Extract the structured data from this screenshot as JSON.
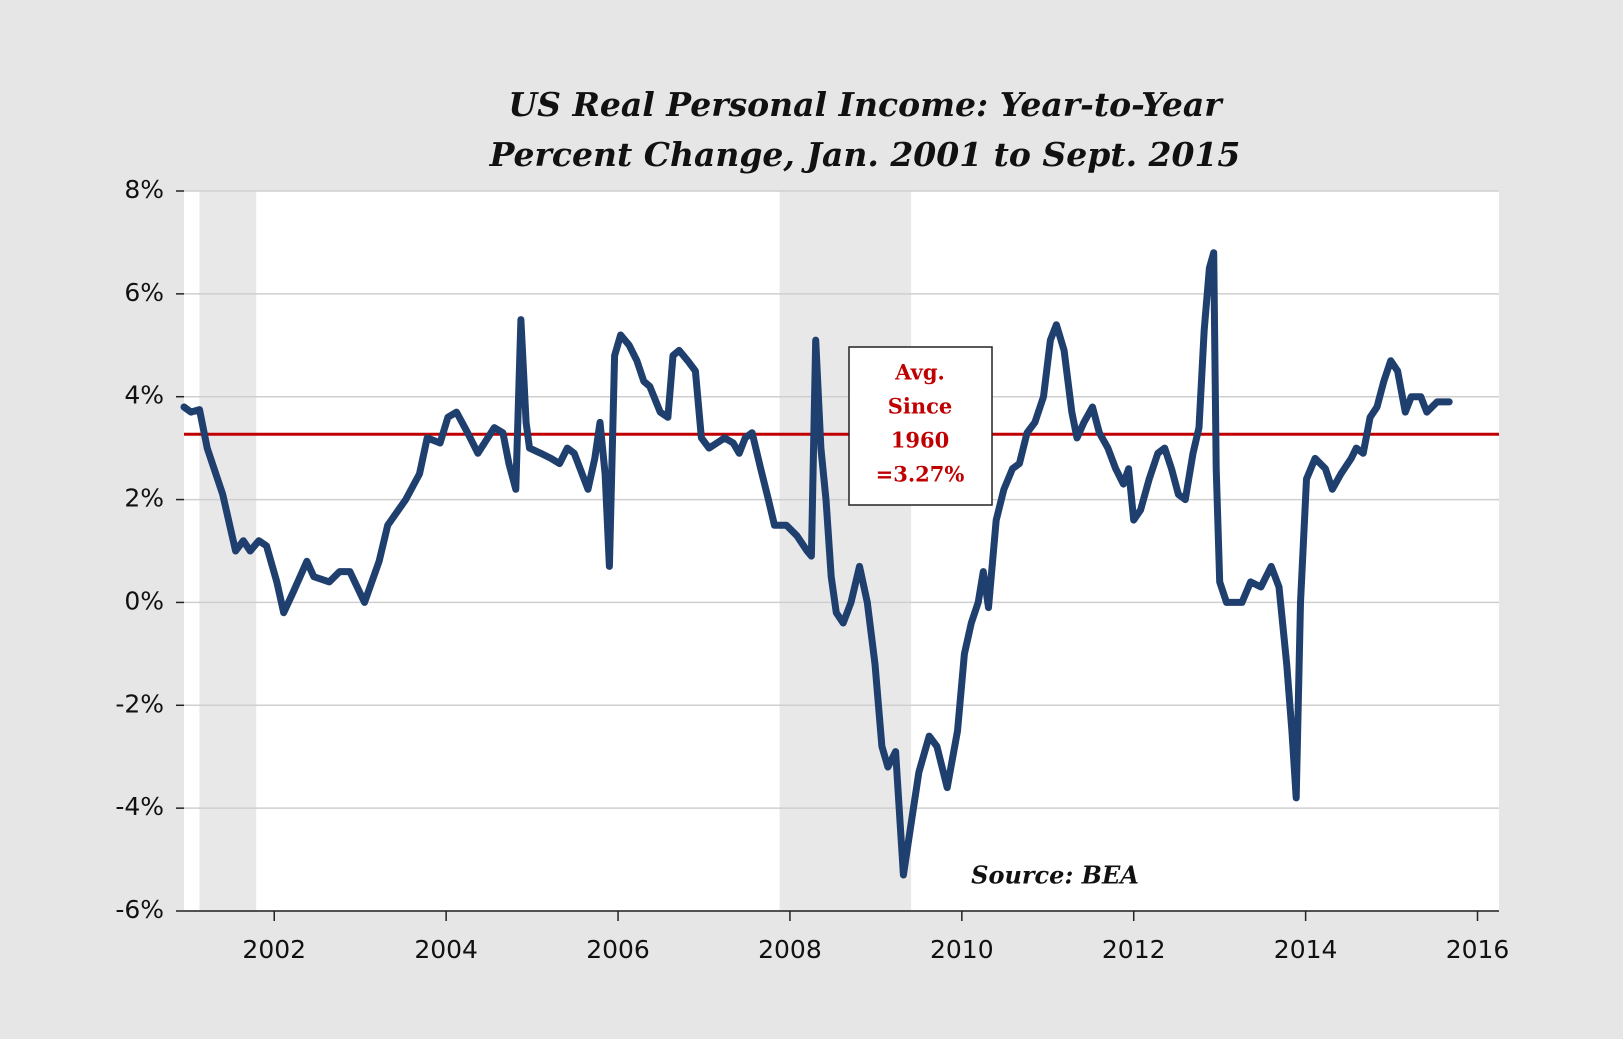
{
  "chart_data": {
    "type": "line",
    "title_lines": [
      "US Real Personal Income: Year-to-Year",
      "Percent Change, Jan. 2001 to Sept. 2015"
    ],
    "source": "Source: BEA",
    "annotation_lines": [
      "Avg.",
      "Since",
      "1960",
      "=3.27%"
    ],
    "reference_line": {
      "value": 3.27,
      "color": "#c00000"
    },
    "shaded_periods": [
      [
        2001.13,
        2001.79
      ],
      [
        2007.88,
        2009.41
      ]
    ],
    "shade_color": "#e8e8e8",
    "xlim": [
      2000.95,
      2016.25
    ],
    "xticks": [
      2002,
      2004,
      2006,
      2008,
      2010,
      2012,
      2014,
      2016
    ],
    "ylim": [
      -6,
      8
    ],
    "yticks": [
      {
        "value": -6,
        "label": "-6%"
      },
      {
        "value": -4,
        "label": "-4%"
      },
      {
        "value": -2,
        "label": "-2%"
      },
      {
        "value": 0,
        "label": "0%"
      },
      {
        "value": 2,
        "label": "2%"
      },
      {
        "value": 4,
        "label": "4%"
      },
      {
        "value": 6,
        "label": "6%"
      },
      {
        "value": 8,
        "label": "8%"
      }
    ],
    "grid": true,
    "x": [
      2000.95,
      2001.03,
      2001.13,
      2001.22,
      2001.4,
      2001.55,
      2001.64,
      2001.72,
      2001.82,
      2001.91,
      2002.03,
      2002.11,
      2002.22,
      2002.38,
      2002.46,
      2002.64,
      2002.76,
      2002.88,
      2003.05,
      2003.22,
      2003.32,
      2003.53,
      2003.69,
      2003.78,
      2003.93,
      2004.02,
      2004.12,
      2004.25,
      2004.37,
      2004.56,
      2004.66,
      2004.73,
      2004.81,
      2004.87,
      2004.93,
      2004.97,
      2005.1,
      2005.22,
      2005.32,
      2005.41,
      2005.49,
      2005.65,
      2005.73,
      2005.79,
      2005.85,
      2005.9,
      2005.96,
      2006.03,
      2006.13,
      2006.22,
      2006.3,
      2006.37,
      2006.49,
      2006.58,
      2006.64,
      2006.71,
      2006.81,
      2006.9,
      2006.97,
      2007.06,
      2007.15,
      2007.24,
      2007.34,
      2007.41,
      2007.48,
      2007.56,
      2007.66,
      2007.75,
      2007.82,
      2007.96,
      2008.08,
      2008.2,
      2008.25,
      2008.3,
      2008.36,
      2008.42,
      2008.48,
      2008.54,
      2008.62,
      2008.71,
      2008.81,
      2008.9,
      2008.99,
      2009.07,
      2009.14,
      2009.23,
      2009.32,
      2009.41,
      2009.5,
      2009.62,
      2009.71,
      2009.83,
      2009.95,
      2010.03,
      2010.11,
      2010.19,
      2010.25,
      2010.31,
      2010.4,
      2010.49,
      2010.59,
      2010.67,
      2010.76,
      2010.85,
      2010.95,
      2011.03,
      2011.1,
      2011.19,
      2011.28,
      2011.34,
      2011.42,
      2011.52,
      2011.6,
      2011.7,
      2011.79,
      2011.88,
      2011.94,
      2012.0,
      2012.08,
      2012.18,
      2012.28,
      2012.36,
      2012.44,
      2012.52,
      2012.6,
      2012.69,
      2012.76,
      2012.82,
      2012.88,
      2012.93,
      2012.96,
      2013.0,
      2013.08,
      2013.26,
      2013.36,
      2013.48,
      2013.6,
      2013.69,
      2013.78,
      2013.84,
      2013.89,
      2013.94,
      2014.01,
      2014.11,
      2014.23,
      2014.31,
      2014.41,
      2014.53,
      2014.59,
      2014.67,
      2014.75,
      2014.83,
      2014.91,
      2014.99,
      2015.07,
      2015.16,
      2015.23,
      2015.34,
      2015.41,
      2015.53,
      2015.67
    ],
    "series": [
      {
        "name": "Real personal income",
        "color": "#1f3f6e",
        "values": [
          3.8,
          3.7,
          3.75,
          3.0,
          2.1,
          1.0,
          1.2,
          1.0,
          1.2,
          1.1,
          0.4,
          -0.2,
          0.2,
          0.8,
          0.5,
          0.4,
          0.6,
          0.6,
          0.0,
          0.8,
          1.5,
          2.0,
          2.5,
          3.2,
          3.1,
          3.6,
          3.7,
          3.3,
          2.9,
          3.4,
          3.3,
          2.7,
          2.2,
          5.5,
          3.5,
          3.0,
          2.9,
          2.8,
          2.7,
          3.0,
          2.9,
          2.2,
          2.8,
          3.5,
          2.5,
          0.7,
          4.8,
          5.2,
          5.0,
          4.7,
          4.3,
          4.2,
          3.7,
          3.6,
          4.8,
          4.9,
          4.7,
          4.5,
          3.2,
          3.0,
          3.1,
          3.2,
          3.1,
          2.9,
          3.2,
          3.3,
          2.6,
          2.0,
          1.5,
          1.5,
          1.3,
          1.0,
          0.9,
          5.1,
          3.0,
          2.0,
          0.5,
          -0.2,
          -0.4,
          0.0,
          0.7,
          0.0,
          -1.2,
          -2.8,
          -3.2,
          -2.9,
          -5.3,
          -4.3,
          -3.3,
          -2.6,
          -2.8,
          -3.6,
          -2.5,
          -1.0,
          -0.4,
          0.0,
          0.6,
          -0.1,
          1.6,
          2.2,
          2.6,
          2.7,
          3.3,
          3.5,
          4.0,
          5.1,
          5.4,
          4.9,
          3.7,
          3.2,
          3.5,
          3.8,
          3.3,
          3.0,
          2.6,
          2.3,
          2.6,
          1.6,
          1.8,
          2.4,
          2.9,
          3.0,
          2.6,
          2.1,
          2.0,
          2.9,
          3.4,
          5.3,
          6.5,
          6.8,
          2.6,
          0.4,
          0.0,
          0.0,
          0.4,
          0.3,
          0.7,
          0.3,
          -1.2,
          -2.5,
          -3.8,
          0.0,
          2.4,
          2.8,
          2.6,
          2.2,
          2.5,
          2.8,
          3.0,
          2.9,
          3.6,
          3.8,
          4.3,
          4.7,
          4.5,
          3.7,
          4.0,
          4.0,
          3.7,
          3.9,
          3.9
        ]
      }
    ]
  }
}
